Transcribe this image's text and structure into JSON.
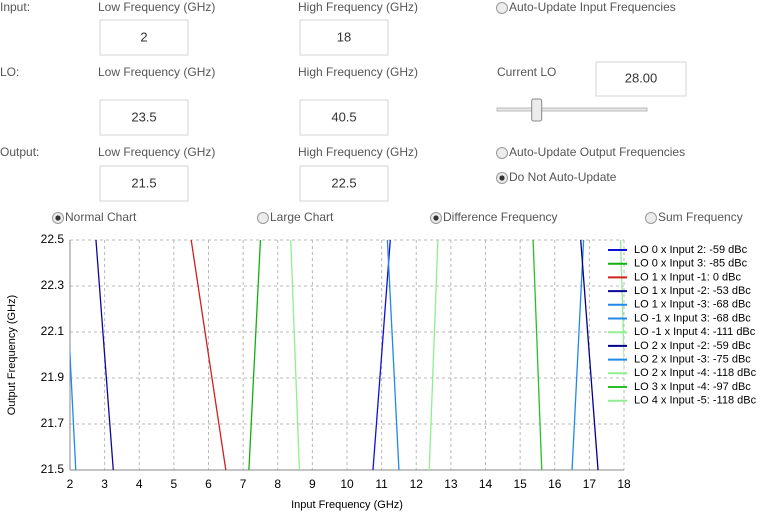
{
  "form": {
    "rows": [
      {
        "label": "Input:",
        "low_label": "Low Frequency (GHz)",
        "low": "2",
        "high_label": "High Frequency (GHz)",
        "high": "18"
      },
      {
        "label": "LO:",
        "low_label": "Low Frequency (GHz)",
        "low": "23.5",
        "high_label": "High Frequency (GHz)",
        "high": "40.5"
      },
      {
        "label": "Output:",
        "low_label": "Low Frequency (GHz)",
        "low": "21.5",
        "high_label": "High Frequency (GHz)",
        "high": "22.5"
      }
    ],
    "current_lo_label": "Current LO",
    "current_lo": "28.00",
    "radios": [
      {
        "label": "Auto-Update Input Frequencies",
        "checked": false
      },
      {
        "label": "Auto-Update Output Frequencies",
        "checked": false
      },
      {
        "label": "Do Not Auto-Update",
        "checked": true
      },
      {
        "label": "Normal Chart",
        "checked": true
      },
      {
        "label": "Large Chart",
        "checked": false
      },
      {
        "label": "Difference Frequency",
        "checked": true
      },
      {
        "label": "Sum Frequency",
        "checked": false
      }
    ]
  },
  "chart_data": {
    "type": "line",
    "x_label": "Input Frequency (GHz)",
    "y_label": "Output Frequency (GHz)",
    "xlim": [
      2,
      18
    ],
    "ylim": [
      21.5,
      22.5
    ],
    "xticks": [
      2,
      3,
      4,
      5,
      6,
      7,
      8,
      9,
      10,
      11,
      12,
      13,
      14,
      15,
      16,
      17,
      18
    ],
    "yticks": [
      21.5,
      21.7,
      21.9,
      22.1,
      22.3,
      22.5
    ],
    "grid": true,
    "legend": "right",
    "series": [
      {
        "name": "LO 0 x Input 2: -59 dBc",
        "color": "#1010d8",
        "x": [
          11.25,
          10.75
        ],
        "values": [
          22.5,
          21.5
        ]
      },
      {
        "name": "LO 0 x Input 3: -85 dBc",
        "color": "#10b010",
        "x": [
          7.5,
          7.1667
        ],
        "values": [
          22.5,
          21.5
        ]
      },
      {
        "name": "LO 1 x Input -1: 0 dBc",
        "color": "#d02020",
        "x": [
          5.5,
          6.5
        ],
        "values": [
          22.5,
          21.5
        ]
      },
      {
        "name": "LO 1 x Input -2: -53 dBc",
        "color": "#0a0a9a",
        "x": [
          2.75,
          3.25
        ],
        "values": [
          22.5,
          21.5
        ]
      },
      {
        "name": "LO 1 x Input -3: -68 dBc",
        "color": "#2088e8",
        "x": [
          1.8333,
          2.1667
        ],
        "values": [
          22.5,
          21.5
        ]
      },
      {
        "name": "LO -1 x Input 3: -68 dBc",
        "color": "#2088e8",
        "x": [
          16.8333,
          16.5
        ],
        "values": [
          22.5,
          21.5
        ]
      },
      {
        "name": "LO -1 x Input 4: -111 dBc",
        "color": "#90ee90",
        "x": [
          12.625,
          12.375
        ],
        "values": [
          22.5,
          21.5
        ]
      },
      {
        "name": "LO 2 x Input -2: -59 dBc",
        "color": "#00008b",
        "x": [
          16.75,
          17.25
        ],
        "values": [
          22.5,
          21.5
        ]
      },
      {
        "name": "LO 2 x Input -3: -75 dBc",
        "color": "#2088e8",
        "x": [
          11.1667,
          11.5
        ],
        "values": [
          22.5,
          21.5
        ]
      },
      {
        "name": "LO 2 x Input -4: -118 dBc",
        "color": "#90ee90",
        "x": [
          8.375,
          8.625
        ],
        "values": [
          22.5,
          21.5
        ]
      },
      {
        "name": "LO 3 x Input -4: -97 dBc",
        "color": "#28c028",
        "x": [
          15.375,
          15.625
        ],
        "values": [
          22.5,
          21.5
        ]
      },
      {
        "name": "LO 4 x Input -5: -118 dBc",
        "color": "#90ee90",
        "x": [
          17.9,
          18.1
        ],
        "values": [
          22.5,
          21.5
        ]
      }
    ]
  }
}
